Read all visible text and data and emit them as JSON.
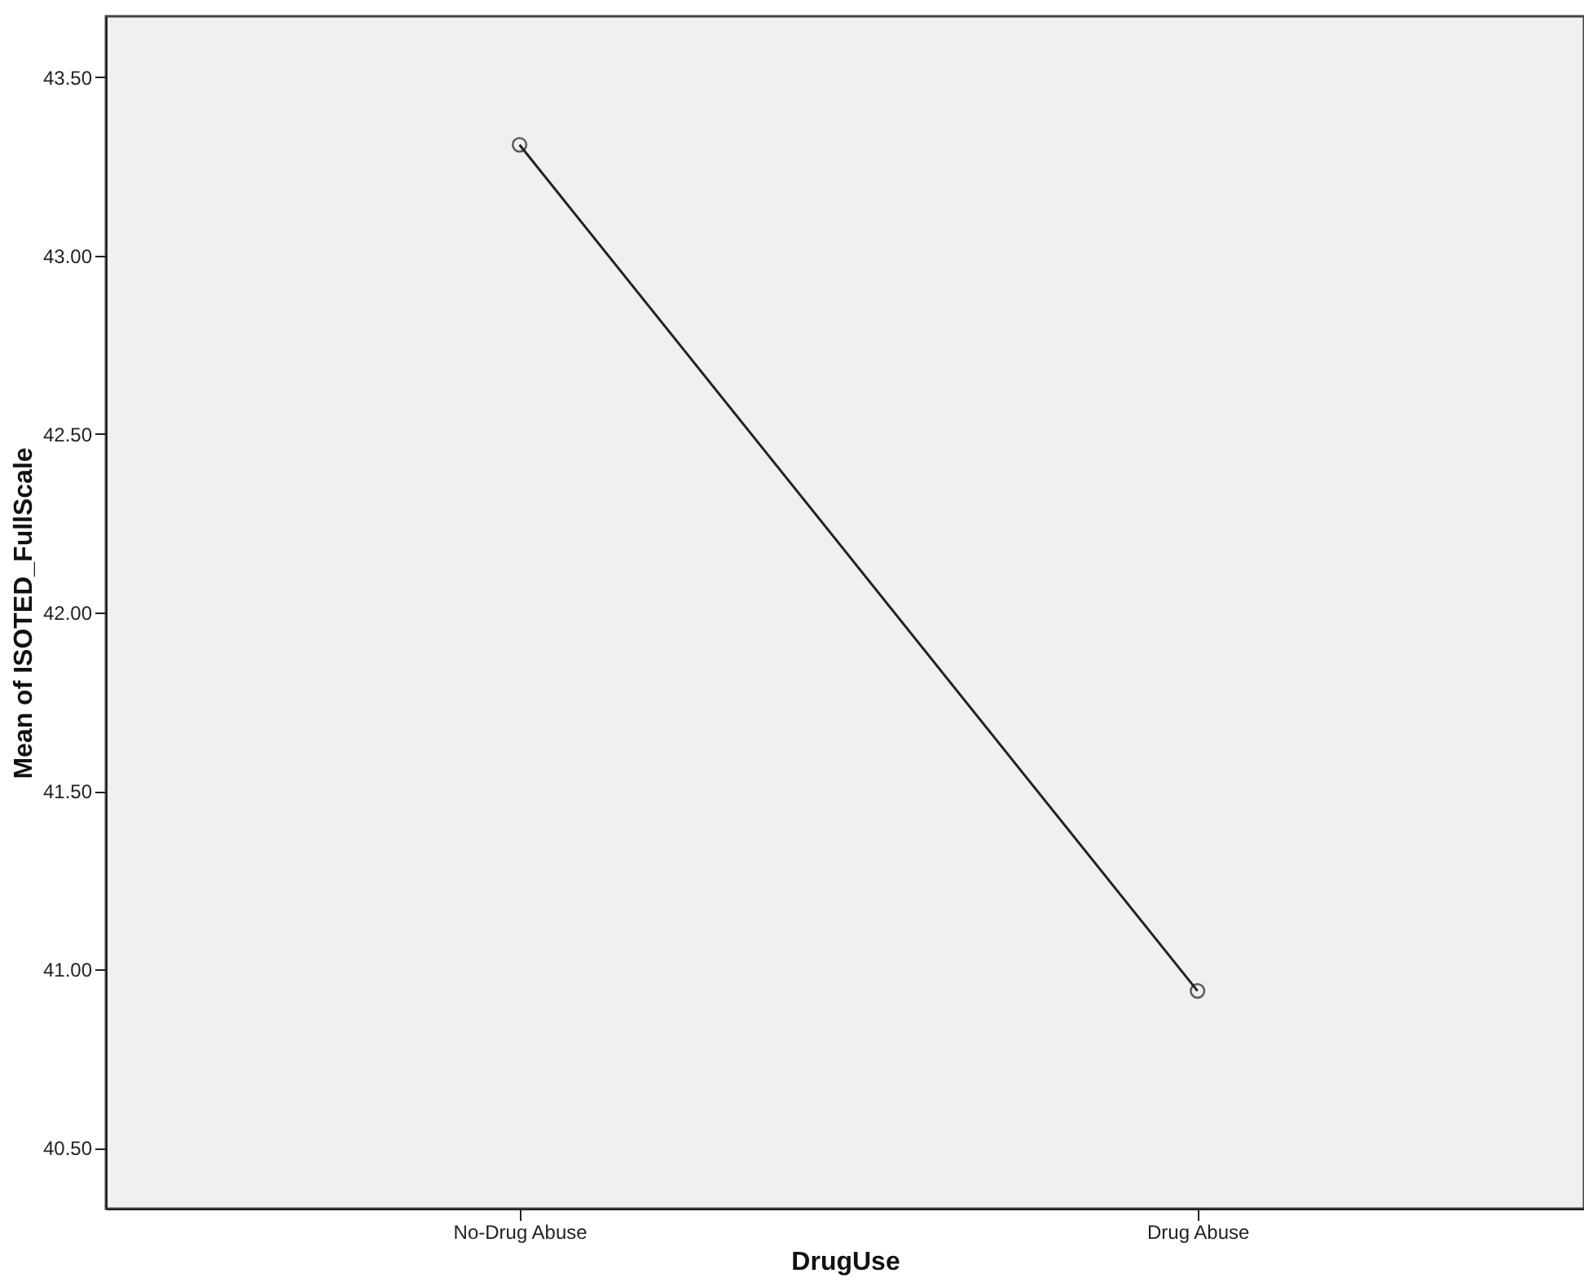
{
  "chart_data": {
    "type": "line",
    "xlabel": "DrugUse",
    "ylabel": "Mean of ISOTED_FullScale",
    "categories": [
      "No-Drug Abuse",
      "Drug Abuse"
    ],
    "series": [
      {
        "color": "#222222",
        "values": [
          43.31,
          40.94
        ]
      }
    ],
    "ylim": [
      40.33,
      43.67
    ],
    "yticks": [
      {
        "value": 40.5,
        "label": "40.50"
      },
      {
        "value": 41.0,
        "label": "41.00"
      },
      {
        "value": 41.5,
        "label": "41.50"
      },
      {
        "value": 42.0,
        "label": "42.00"
      },
      {
        "value": 42.5,
        "label": "42.50"
      },
      {
        "value": 43.0,
        "label": "43.00"
      },
      {
        "value": 43.5,
        "label": "43.50"
      }
    ],
    "marker": "circle",
    "line_style": "solid"
  }
}
